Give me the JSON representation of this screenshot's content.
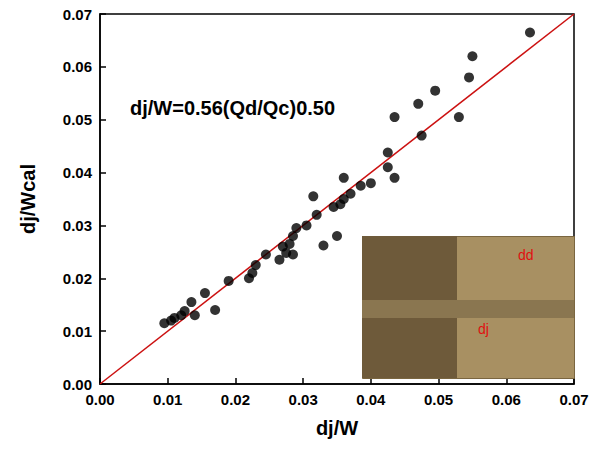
{
  "chart_data": {
    "type": "scatter",
    "x_label": "dj/W",
    "y_label": "dj/Wcal",
    "annotations": [
      {
        "text": "dj/W=0.56(Qd/Qc)0.50"
      },
      {
        "text": "dd"
      },
      {
        "text": "dj"
      }
    ],
    "xlim": [
      0,
      0.07
    ],
    "ylim": [
      0,
      0.07
    ],
    "xticks": [
      {
        "value": 0,
        "label": "0.00"
      },
      {
        "value": 0.01,
        "label": "0.01"
      },
      {
        "value": 0.02,
        "label": "0.02"
      },
      {
        "value": 0.03,
        "label": "0.03"
      },
      {
        "value": 0.04,
        "label": "0.04"
      },
      {
        "value": 0.05,
        "label": "0.05"
      },
      {
        "value": 0.06,
        "label": "0.06"
      },
      {
        "value": 0.07,
        "label": "0.07"
      }
    ],
    "yticks": [
      {
        "value": 0,
        "label": "0.00"
      },
      {
        "value": 0.01,
        "label": "0.01"
      },
      {
        "value": 0.02,
        "label": "0.02"
      },
      {
        "value": 0.03,
        "label": "0.03"
      },
      {
        "value": 0.04,
        "label": "0.04"
      },
      {
        "value": 0.05,
        "label": "0.05"
      },
      {
        "value": 0.06,
        "label": "0.06"
      },
      {
        "value": 0.07,
        "label": "0.07"
      }
    ],
    "grid": false,
    "series": [
      {
        "type": "scatter",
        "color": "#000000",
        "marker": "circle",
        "x": [
          0.0095,
          0.0105,
          0.011,
          0.012,
          0.0125,
          0.0135,
          0.014,
          0.0155,
          0.017,
          0.019,
          0.022,
          0.0225,
          0.023,
          0.0245,
          0.0265,
          0.027,
          0.0275,
          0.028,
          0.0285,
          0.0285,
          0.029,
          0.0305,
          0.0315,
          0.032,
          0.033,
          0.0345,
          0.035,
          0.0355,
          0.036,
          0.036,
          0.037,
          0.0385,
          0.04,
          0.0425,
          0.0425,
          0.0435,
          0.0435,
          0.047,
          0.0475,
          0.0495,
          0.053,
          0.0545,
          0.055,
          0.0635
        ],
        "values": [
          0.0115,
          0.012,
          0.0125,
          0.013,
          0.0138,
          0.0155,
          0.013,
          0.0172,
          0.014,
          0.0195,
          0.02,
          0.021,
          0.0225,
          0.0245,
          0.0235,
          0.026,
          0.0248,
          0.0265,
          0.0245,
          0.028,
          0.0295,
          0.03,
          0.0355,
          0.032,
          0.0262,
          0.0335,
          0.028,
          0.034,
          0.039,
          0.035,
          0.036,
          0.0375,
          0.038,
          0.041,
          0.0438,
          0.0505,
          0.039,
          0.053,
          0.047,
          0.0555,
          0.0505,
          0.058,
          0.062,
          0.0665
        ]
      },
      {
        "type": "line",
        "color": "#cc1111",
        "line_style": "solid",
        "x": [
          0,
          0.07
        ],
        "values": [
          0,
          0.07
        ]
      }
    ]
  }
}
